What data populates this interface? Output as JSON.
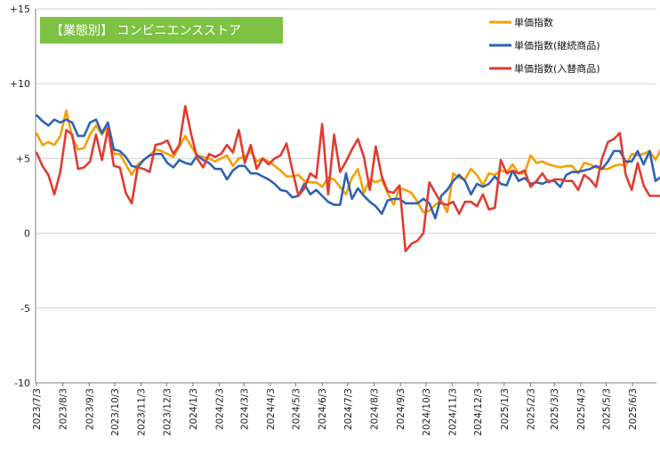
{
  "chart_data": {
    "type": "line",
    "title": "【業態別】 コンビニエンスストア",
    "title_bg_color": "#7dc242",
    "ylim": [
      -10,
      15
    ],
    "yticks": [
      {
        "value": 15,
        "label": "+15"
      },
      {
        "value": 10,
        "label": "+10"
      },
      {
        "value": 5,
        "label": "+5"
      },
      {
        "value": 0,
        "label": "0"
      },
      {
        "value": -5,
        "label": "-5"
      },
      {
        "value": -10,
        "label": "-10"
      }
    ],
    "grid": true,
    "legend_position": "top-right",
    "x_start": "2023-07-03",
    "x_end": "2025-06-30",
    "x_interval_days": 7,
    "xtick_labels": [
      "2023/7/3",
      "2023/8/3",
      "2023/9/3",
      "2023/10/3",
      "2023/11/3",
      "2023/12/3",
      "2024/1/3",
      "2024/2/3",
      "2024/3/3",
      "2024/4/3",
      "2024/5/3",
      "2024/6/3",
      "2024/7/3",
      "2024/8/3",
      "2024/9/3",
      "2024/10/3",
      "2024/11/3",
      "2024/12/3",
      "2025/1/3",
      "2025/2/3",
      "2025/3/3",
      "2025/4/3",
      "2025/5/3",
      "2025/6/3"
    ],
    "series": [
      {
        "name": "単価指数",
        "color": "#f5a000",
        "values": [
          6.7,
          5.9,
          6.1,
          5.9,
          6.5,
          8.2,
          6.4,
          5.6,
          5.7,
          6.6,
          7.2,
          6.6,
          7.2,
          5.3,
          5.3,
          4.6,
          3.9,
          4.6,
          4.9,
          5.2,
          5.6,
          5.5,
          5.3,
          5.1,
          5.8,
          6.5,
          5.8,
          5.2,
          5.1,
          5.0,
          4.8,
          5.0,
          5.2,
          4.5,
          5.0,
          5.1,
          5.5,
          4.8,
          5.0,
          4.8,
          4.5,
          4.2,
          3.8,
          3.8,
          3.9,
          3.5,
          3.4,
          3.4,
          3.1,
          3.7,
          3.6,
          3.1,
          2.6,
          3.7,
          4.3,
          2.7,
          3.6,
          3.4,
          3.6,
          2.7,
          1.9,
          3.0,
          2.9,
          2.7,
          2.1,
          1.4,
          1.5,
          1.9,
          2.2,
          1.4,
          4.0,
          3.7,
          3.6,
          4.3,
          3.9,
          3.2,
          4.0,
          3.9,
          4.2,
          4.1,
          4.6,
          4.0,
          4.0,
          5.2,
          4.7,
          4.8,
          4.6,
          4.5,
          4.4,
          4.5,
          4.5,
          4.0,
          4.7,
          4.6,
          4.4,
          4.3,
          4.3,
          4.5,
          4.6,
          4.5,
          5.3,
          5.2,
          5.3,
          5.5,
          4.9,
          5.7,
          4.0
        ]
      },
      {
        "name": "単価指数(継続商品)",
        "color": "#2e62b6",
        "values": [
          7.9,
          7.5,
          7.2,
          7.6,
          7.4,
          7.6,
          7.4,
          6.5,
          6.5,
          7.4,
          7.6,
          6.7,
          7.4,
          5.6,
          5.5,
          5.1,
          4.5,
          4.4,
          4.9,
          5.2,
          5.3,
          5.3,
          4.7,
          4.4,
          4.9,
          4.7,
          4.6,
          5.2,
          4.9,
          4.7,
          4.3,
          4.3,
          3.6,
          4.2,
          4.5,
          4.5,
          4.0,
          4.0,
          3.8,
          3.6,
          3.3,
          2.9,
          2.8,
          2.4,
          2.5,
          3.3,
          2.6,
          2.9,
          2.5,
          2.1,
          1.9,
          1.9,
          4.0,
          2.3,
          3.0,
          2.5,
          2.1,
          1.8,
          1.3,
          2.2,
          2.3,
          2.3,
          2.0,
          2.0,
          2.0,
          2.3,
          2.0,
          1.0,
          2.5,
          2.9,
          3.5,
          3.9,
          3.5,
          2.6,
          3.3,
          3.1,
          3.3,
          3.8,
          3.3,
          3.2,
          4.2,
          3.5,
          3.7,
          3.3,
          3.4,
          3.3,
          3.5,
          3.5,
          3.1,
          3.9,
          4.1,
          4.1,
          4.2,
          4.3,
          4.5,
          4.3,
          4.8,
          5.5,
          5.5,
          4.8,
          4.8,
          5.5,
          4.6,
          5.5,
          3.5,
          3.8,
          4.0
        ]
      },
      {
        "name": "単価指数(入替商品)",
        "color": "#e03c31",
        "values": [
          5.4,
          4.5,
          3.9,
          2.6,
          4.1,
          6.9,
          6.6,
          4.3,
          4.4,
          4.8,
          6.6,
          4.9,
          7.0,
          4.5,
          4.4,
          2.7,
          2.0,
          4.4,
          4.3,
          4.1,
          5.9,
          6.0,
          6.2,
          5.3,
          5.9,
          8.5,
          6.6,
          5.0,
          4.4,
          5.3,
          5.1,
          5.3,
          5.9,
          5.4,
          6.9,
          4.7,
          5.9,
          4.3,
          5.0,
          4.6,
          5.0,
          5.2,
          6.0,
          4.2,
          2.5,
          3.0,
          4.0,
          3.7,
          7.3,
          2.6,
          6.6,
          4.1,
          4.8,
          5.6,
          6.3,
          5.1,
          2.9,
          5.8,
          3.8,
          2.8,
          2.7,
          3.2,
          -1.2,
          -0.7,
          -0.5,
          0.0,
          3.4,
          2.7,
          2.0,
          1.9,
          2.1,
          1.3,
          2.1,
          2.1,
          1.8,
          2.6,
          1.6,
          1.7,
          4.9,
          4.0,
          4.2,
          4.0,
          4.2,
          3.1,
          3.5,
          4.0,
          3.4,
          3.6,
          3.6,
          3.5,
          3.5,
          2.9,
          3.9,
          3.6,
          3.1,
          5.0,
          6.1,
          6.3,
          6.7,
          3.9,
          2.9,
          4.7,
          3.2,
          2.5,
          2.5,
          2.5,
          2.5
        ]
      }
    ]
  }
}
